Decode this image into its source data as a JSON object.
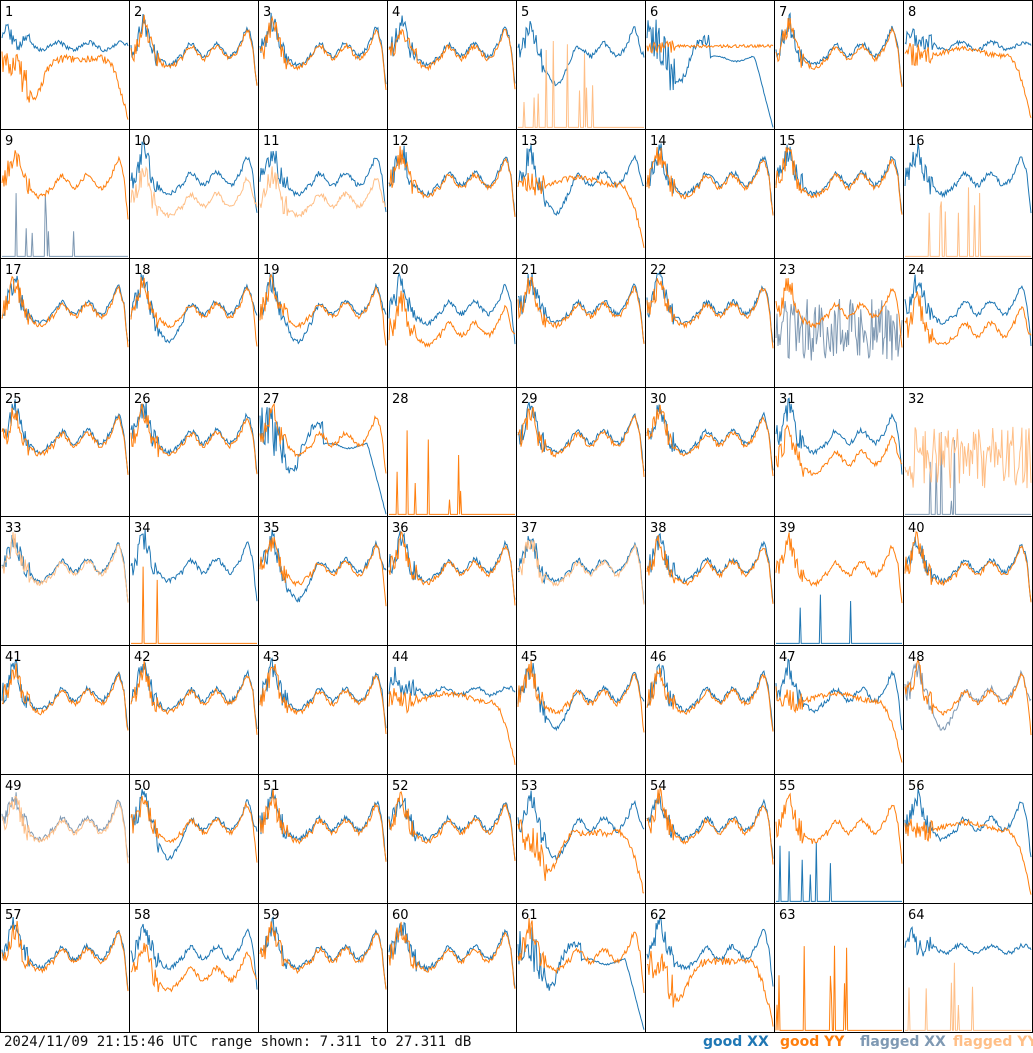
{
  "chart_data": {
    "type": "line",
    "title": "",
    "grid": {
      "rows": 8,
      "cols": 8
    },
    "panels": [
      {
        "label": "1",
        "xx": "good",
        "yy": "good",
        "xx_shape": "steady",
        "yy_shape": "droop_low"
      },
      {
        "label": "2",
        "xx": "good",
        "yy": "good",
        "xx_shape": "normal",
        "yy_shape": "normal"
      },
      {
        "label": "3",
        "xx": "good",
        "yy": "good",
        "xx_shape": "normal",
        "yy_shape": "normal"
      },
      {
        "label": "4",
        "xx": "good",
        "yy": "good",
        "xx_shape": "normal",
        "yy_shape": "normal"
      },
      {
        "label": "5",
        "xx": "good",
        "yy": "flagged",
        "xx_shape": "dip",
        "yy_shape": "sparse"
      },
      {
        "label": "6",
        "xx": "good",
        "yy": "good",
        "xx_shape": "deep_dip",
        "yy_shape": "flat"
      },
      {
        "label": "7",
        "xx": "good",
        "yy": "good",
        "xx_shape": "normal",
        "yy_shape": "normal"
      },
      {
        "label": "8",
        "xx": "good",
        "yy": "good",
        "xx_shape": "steady",
        "yy_shape": "droop"
      },
      {
        "label": "9",
        "xx": "flagged",
        "yy": "good",
        "xx_shape": "sparse",
        "yy_shape": "normal"
      },
      {
        "label": "10",
        "xx": "good",
        "yy": "flagged",
        "xx_shape": "normal",
        "yy_shape": "low"
      },
      {
        "label": "11",
        "xx": "good",
        "yy": "flagged",
        "xx_shape": "normal",
        "yy_shape": "low"
      },
      {
        "label": "12",
        "xx": "good",
        "yy": "good",
        "xx_shape": "normal",
        "yy_shape": "normal"
      },
      {
        "label": "13",
        "xx": "good",
        "yy": "good",
        "xx_shape": "dip",
        "yy_shape": "droop"
      },
      {
        "label": "14",
        "xx": "good",
        "yy": "good",
        "xx_shape": "normal",
        "yy_shape": "normal"
      },
      {
        "label": "15",
        "xx": "good",
        "yy": "good",
        "xx_shape": "normal",
        "yy_shape": "normal"
      },
      {
        "label": "16",
        "xx": "good",
        "yy": "flagged",
        "xx_shape": "normal",
        "yy_shape": "sparse"
      },
      {
        "label": "17",
        "xx": "good",
        "yy": "good",
        "xx_shape": "normal",
        "yy_shape": "normal"
      },
      {
        "label": "18",
        "xx": "good",
        "yy": "good",
        "xx_shape": "dip",
        "yy_shape": "normal"
      },
      {
        "label": "19",
        "xx": "good",
        "yy": "good",
        "xx_shape": "dip",
        "yy_shape": "normal"
      },
      {
        "label": "20",
        "xx": "good",
        "yy": "good",
        "xx_shape": "normal",
        "yy_shape": "low"
      },
      {
        "label": "21",
        "xx": "good",
        "yy": "good",
        "xx_shape": "normal",
        "yy_shape": "normal"
      },
      {
        "label": "22",
        "xx": "good",
        "yy": "good",
        "xx_shape": "normal",
        "yy_shape": "normal"
      },
      {
        "label": "23",
        "xx": "flagged",
        "yy": "good",
        "xx_shape": "noisy",
        "yy_shape": "normal"
      },
      {
        "label": "24",
        "xx": "good",
        "yy": "good",
        "xx_shape": "normal",
        "yy_shape": "low"
      },
      {
        "label": "25",
        "xx": "good",
        "yy": "good",
        "xx_shape": "normal",
        "yy_shape": "normal"
      },
      {
        "label": "26",
        "xx": "good",
        "yy": "good",
        "xx_shape": "normal",
        "yy_shape": "normal"
      },
      {
        "label": "27",
        "xx": "good",
        "yy": "good",
        "xx_shape": "deep_dip",
        "yy_shape": "normal"
      },
      {
        "label": "28",
        "xx": "good",
        "yy": "good",
        "xx_shape": "none",
        "yy_shape": "sparse"
      },
      {
        "label": "29",
        "xx": "good",
        "yy": "good",
        "xx_shape": "normal",
        "yy_shape": "normal"
      },
      {
        "label": "30",
        "xx": "good",
        "yy": "good",
        "xx_shape": "normal",
        "yy_shape": "normal"
      },
      {
        "label": "31",
        "xx": "good",
        "yy": "good",
        "xx_shape": "normal",
        "yy_shape": "low"
      },
      {
        "label": "32",
        "xx": "flagged",
        "yy": "flagged",
        "xx_shape": "sparse",
        "yy_shape": "noisy"
      },
      {
        "label": "33",
        "xx": "good",
        "yy": "flagged",
        "xx_shape": "normal",
        "yy_shape": "normal"
      },
      {
        "label": "34",
        "xx": "good",
        "yy": "good",
        "xx_shape": "normal",
        "yy_shape": "sparse"
      },
      {
        "label": "35",
        "xx": "good",
        "yy": "good",
        "xx_shape": "dip",
        "yy_shape": "normal"
      },
      {
        "label": "36",
        "xx": "good",
        "yy": "good",
        "xx_shape": "normal",
        "yy_shape": "normal"
      },
      {
        "label": "37",
        "xx": "good",
        "yy": "flagged",
        "xx_shape": "normal",
        "yy_shape": "normal"
      },
      {
        "label": "38",
        "xx": "good",
        "yy": "good",
        "xx_shape": "normal",
        "yy_shape": "normal"
      },
      {
        "label": "39",
        "xx": "good",
        "yy": "good",
        "xx_shape": "sparse",
        "yy_shape": "normal"
      },
      {
        "label": "40",
        "xx": "good",
        "yy": "good",
        "xx_shape": "normal",
        "yy_shape": "normal"
      },
      {
        "label": "41",
        "xx": "good",
        "yy": "good",
        "xx_shape": "normal",
        "yy_shape": "normal"
      },
      {
        "label": "42",
        "xx": "good",
        "yy": "good",
        "xx_shape": "normal",
        "yy_shape": "normal"
      },
      {
        "label": "43",
        "xx": "good",
        "yy": "good",
        "xx_shape": "normal",
        "yy_shape": "normal"
      },
      {
        "label": "44",
        "xx": "good",
        "yy": "good",
        "xx_shape": "steady",
        "yy_shape": "droop"
      },
      {
        "label": "45",
        "xx": "good",
        "yy": "good",
        "xx_shape": "dip",
        "yy_shape": "normal"
      },
      {
        "label": "46",
        "xx": "good",
        "yy": "good",
        "xx_shape": "normal",
        "yy_shape": "normal"
      },
      {
        "label": "47",
        "xx": "good",
        "yy": "good",
        "xx_shape": "normal",
        "yy_shape": "droop"
      },
      {
        "label": "48",
        "xx": "flagged",
        "yy": "good",
        "xx_shape": "dip",
        "yy_shape": "normal"
      },
      {
        "label": "49",
        "xx": "flagged",
        "yy": "flagged",
        "xx_shape": "normal",
        "yy_shape": "normal"
      },
      {
        "label": "50",
        "xx": "good",
        "yy": "good",
        "xx_shape": "dip",
        "yy_shape": "normal"
      },
      {
        "label": "51",
        "xx": "good",
        "yy": "good",
        "xx_shape": "normal",
        "yy_shape": "normal"
      },
      {
        "label": "52",
        "xx": "good",
        "yy": "good",
        "xx_shape": "normal",
        "yy_shape": "normal"
      },
      {
        "label": "53",
        "xx": "good",
        "yy": "good",
        "xx_shape": "dip",
        "yy_shape": "droop_low"
      },
      {
        "label": "54",
        "xx": "good",
        "yy": "good",
        "xx_shape": "normal",
        "yy_shape": "normal"
      },
      {
        "label": "55",
        "xx": "good",
        "yy": "good",
        "xx_shape": "sparse",
        "yy_shape": "normal"
      },
      {
        "label": "56",
        "xx": "good",
        "yy": "good",
        "xx_shape": "normal",
        "yy_shape": "droop"
      },
      {
        "label": "57",
        "xx": "good",
        "yy": "good",
        "xx_shape": "normal",
        "yy_shape": "normal"
      },
      {
        "label": "58",
        "xx": "good",
        "yy": "good",
        "xx_shape": "normal",
        "yy_shape": "low"
      },
      {
        "label": "59",
        "xx": "good",
        "yy": "good",
        "xx_shape": "normal",
        "yy_shape": "normal"
      },
      {
        "label": "60",
        "xx": "good",
        "yy": "good",
        "xx_shape": "normal",
        "yy_shape": "normal"
      },
      {
        "label": "61",
        "xx": "good",
        "yy": "good",
        "xx_shape": "deep_dip",
        "yy_shape": "normal"
      },
      {
        "label": "62",
        "xx": "good",
        "yy": "good",
        "xx_shape": "normal",
        "yy_shape": "droop_low"
      },
      {
        "label": "63",
        "xx": "good",
        "yy": "good",
        "xx_shape": "none",
        "yy_shape": "sparse"
      },
      {
        "label": "64",
        "xx": "good",
        "yy": "flagged",
        "xx_shape": "steady",
        "yy_shape": "sparse"
      }
    ],
    "legend": [
      {
        "label": "good XX",
        "color": "#1f77b4"
      },
      {
        "label": "good YY",
        "color": "#ff7f0e"
      },
      {
        "label": "flagged XX",
        "color": "#7f99b3"
      },
      {
        "label": "flagged YY",
        "color": "#ffbf87"
      }
    ],
    "ylim": [
      7.311,
      27.311
    ],
    "yunit": "dB"
  },
  "footer": {
    "timestamp": "2024/11/09 21:15:46 UTC",
    "range_text": "range shown: 7.311 to 27.311 dB"
  }
}
